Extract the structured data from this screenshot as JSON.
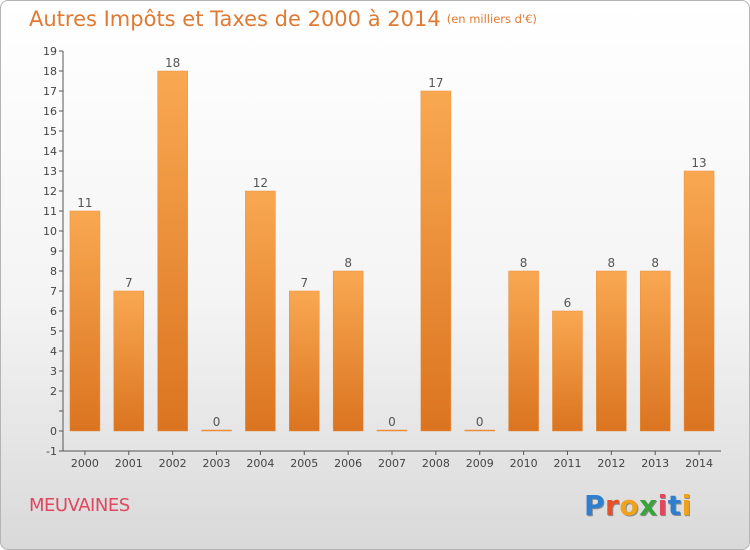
{
  "title": "Autres Impôts et Taxes de 2000 à 2014",
  "subtitle": "(en milliers d'€)",
  "location": "MEUVAINES",
  "logo": {
    "letters": [
      "P",
      "r",
      "o",
      "x",
      "i",
      "t",
      "i"
    ],
    "colors": [
      "#2f7fcf",
      "#e8502a",
      "#f0a21a",
      "#3aa33a",
      "#e0465e",
      "#2f7fcf",
      "#f0a21a"
    ]
  },
  "colors": {
    "bar": "#f28a2e",
    "bar_top": "#f8a550",
    "title": "#e07a32",
    "location": "#e0465e"
  },
  "chart_data": {
    "type": "bar",
    "title": "Autres Impôts et Taxes de 2000 à 2014",
    "subtitle": "(en milliers d'€)",
    "categories": [
      "2000",
      "2001",
      "2002",
      "2003",
      "2004",
      "2005",
      "2006",
      "2007",
      "2008",
      "2009",
      "2010",
      "2011",
      "2012",
      "2013",
      "2014"
    ],
    "values": [
      11,
      7,
      18,
      0,
      12,
      7,
      8,
      0,
      17,
      0,
      8,
      6,
      8,
      8,
      13
    ],
    "ylim": [
      -1,
      19
    ],
    "yticks": [
      -1,
      0,
      1,
      2,
      3,
      4,
      5,
      6,
      7,
      8,
      9,
      10,
      11,
      12,
      13,
      14,
      15,
      16,
      17,
      18,
      19
    ],
    "ytick_labels": [
      "-1",
      "0",
      "",
      "2",
      "3",
      "4",
      "5",
      "6",
      "7",
      "8",
      "9",
      "10",
      "11",
      "12",
      "13",
      "14",
      "15",
      "16",
      "17",
      "18",
      "19"
    ],
    "grid": false,
    "legend": "none"
  }
}
